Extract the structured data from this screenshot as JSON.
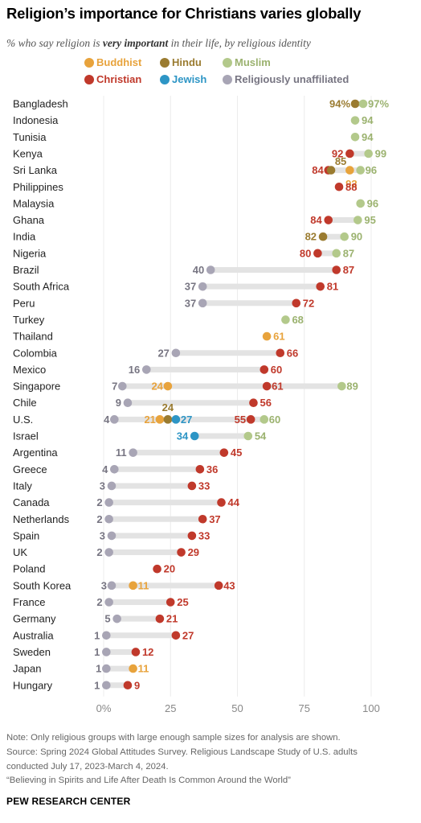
{
  "title": "Religion’s importance for Christians varies globally",
  "subtitle_parts": {
    "before": "% who say religion is ",
    "bold": "very important",
    "after": " in their life, by religious identity"
  },
  "legend": [
    {
      "label": "Buddhist",
      "color": "#E8A33C"
    },
    {
      "label": "Hindu",
      "color": "#9A7B30"
    },
    {
      "label": "Muslim",
      "color": "#B3C98B"
    },
    {
      "label": "Christian",
      "color": "#C0392B"
    },
    {
      "label": "Jewish",
      "color": "#2D95C5"
    },
    {
      "label": "Religiously unaffiliated",
      "color": "#A8A5B5"
    }
  ],
  "label_colors": {
    "Buddhist": "#E8A33C",
    "Hindu": "#9A7B30",
    "Muslim": "#9BB26F",
    "Christian": "#C0392B",
    "Jewish": "#2D95C5",
    "Religiously unaffiliated": "#777582"
  },
  "chart_data": {
    "type": "dot",
    "x_ticks": [
      "0%",
      "25",
      "50",
      "75",
      "100"
    ],
    "xlim": [
      0,
      100
    ],
    "rows": [
      {
        "country": "Bangladesh",
        "values": {
          "Hindu": 94,
          "Muslim": 97
        }
      },
      {
        "country": "Indonesia",
        "values": {
          "Muslim": 94
        }
      },
      {
        "country": "Tunisia",
        "values": {
          "Muslim": 94
        }
      },
      {
        "country": "Kenya",
        "values": {
          "Christian": 92,
          "Muslim": 99
        }
      },
      {
        "country": "Sri Lanka",
        "values": {
          "Christian": 84,
          "Hindu": 85,
          "Buddhist": 92,
          "Muslim": 96
        }
      },
      {
        "country": "Philippines",
        "values": {
          "Christian": 88
        }
      },
      {
        "country": "Malaysia",
        "values": {
          "Muslim": 96
        }
      },
      {
        "country": "Ghana",
        "values": {
          "Christian": 84,
          "Muslim": 95
        }
      },
      {
        "country": "India",
        "values": {
          "Hindu": 82,
          "Muslim": 90
        }
      },
      {
        "country": "Nigeria",
        "values": {
          "Christian": 80,
          "Muslim": 87
        }
      },
      {
        "country": "Brazil",
        "values": {
          "Religiously unaffiliated": 40,
          "Christian": 87
        }
      },
      {
        "country": "South Africa",
        "values": {
          "Religiously unaffiliated": 37,
          "Christian": 81
        }
      },
      {
        "country": "Peru",
        "values": {
          "Religiously unaffiliated": 37,
          "Christian": 72
        }
      },
      {
        "country": "Turkey",
        "values": {
          "Muslim": 68
        }
      },
      {
        "country": "Thailand",
        "values": {
          "Buddhist": 61
        }
      },
      {
        "country": "Colombia",
        "values": {
          "Religiously unaffiliated": 27,
          "Christian": 66
        }
      },
      {
        "country": "Mexico",
        "values": {
          "Religiously unaffiliated": 16,
          "Christian": 60
        }
      },
      {
        "country": "Singapore",
        "values": {
          "Religiously unaffiliated": 7,
          "Buddhist": 24,
          "Christian": 61,
          "Muslim": 89
        }
      },
      {
        "country": "Chile",
        "values": {
          "Religiously unaffiliated": 9,
          "Christian": 56
        }
      },
      {
        "country": "U.S.",
        "values": {
          "Religiously unaffiliated": 4,
          "Buddhist": 21,
          "Hindu": 24,
          "Jewish": 27,
          "Christian": 55,
          "Muslim": 60
        }
      },
      {
        "country": "Israel",
        "values": {
          "Jewish": 34,
          "Muslim": 54
        }
      },
      {
        "country": "Argentina",
        "values": {
          "Religiously unaffiliated": 11,
          "Christian": 45
        }
      },
      {
        "country": "Greece",
        "values": {
          "Religiously unaffiliated": 4,
          "Christian": 36
        }
      },
      {
        "country": "Italy",
        "values": {
          "Religiously unaffiliated": 3,
          "Christian": 33
        }
      },
      {
        "country": "Canada",
        "values": {
          "Religiously unaffiliated": 2,
          "Christian": 44
        }
      },
      {
        "country": "Netherlands",
        "values": {
          "Religiously unaffiliated": 2,
          "Christian": 37
        }
      },
      {
        "country": "Spain",
        "values": {
          "Religiously unaffiliated": 3,
          "Christian": 33
        }
      },
      {
        "country": "UK",
        "values": {
          "Religiously unaffiliated": 2,
          "Christian": 29
        }
      },
      {
        "country": "Poland",
        "values": {
          "Christian": 20
        }
      },
      {
        "country": "South Korea",
        "values": {
          "Religiously unaffiliated": 3,
          "Buddhist": 11,
          "Christian": 43
        }
      },
      {
        "country": "France",
        "values": {
          "Religiously unaffiliated": 2,
          "Christian": 25
        }
      },
      {
        "country": "Germany",
        "values": {
          "Religiously unaffiliated": 5,
          "Christian": 21
        }
      },
      {
        "country": "Australia",
        "values": {
          "Religiously unaffiliated": 1,
          "Christian": 27
        }
      },
      {
        "country": "Sweden",
        "values": {
          "Religiously unaffiliated": 1,
          "Christian": 12
        }
      },
      {
        "country": "Japan",
        "values": {
          "Religiously unaffiliated": 1,
          "Buddhist": 11
        }
      },
      {
        "country": "Hungary",
        "values": {
          "Religiously unaffiliated": 1,
          "Christian": 9
        }
      }
    ]
  },
  "footer": {
    "note": "Note: Only religious groups with large enough sample sizes for analysis are shown.",
    "source1": "Source: Spring 2024 Global Attitudes Survey. Religious Landscape Study of U.S. adults",
    "source2": "conducted July 17, 2023-March 4, 2024.",
    "report": "“Believing in Spirits and Life After Death Is Common Around the World”",
    "brand": "PEW RESEARCH CENTER"
  }
}
